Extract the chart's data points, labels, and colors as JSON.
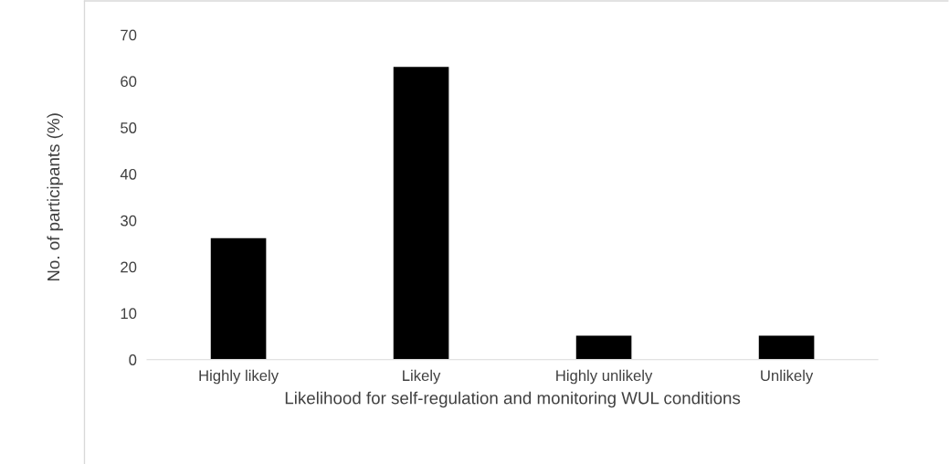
{
  "chart_data": {
    "type": "bar",
    "xlabel": "Likelihood for self-regulation and monitoring WUL conditions",
    "ylabel": "No. of participants (%)",
    "categories": [
      "Highly likely",
      "Likely",
      "Highly unlikely",
      "Unlikely"
    ],
    "values": [
      26.3,
      63.2,
      5.3,
      5.3
    ],
    "color": "#000000",
    "ylim": [
      0,
      70
    ],
    "yticks": [
      0,
      10,
      20,
      30,
      40,
      50,
      60,
      70
    ],
    "grid": false,
    "legend": false
  }
}
